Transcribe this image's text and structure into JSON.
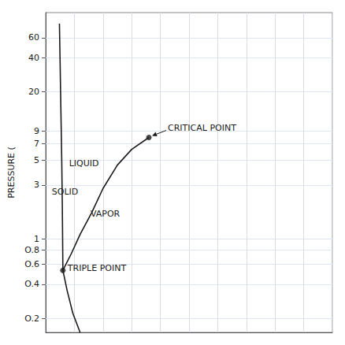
{
  "chart_data": {
    "type": "line",
    "ylabel": "PRESSURE (",
    "color": "#1a1a1a",
    "log": "y",
    "grid": true,
    "tick_labels": "y",
    "xlim": [
      0,
      10
    ],
    "xticks": [
      0,
      1,
      2,
      3,
      4,
      5,
      6,
      7,
      8,
      9,
      10
    ],
    "ylim": [
      0.15,
      100
    ],
    "yticks": [
      {
        "value": 0.2,
        "label": "O.2"
      },
      {
        "value": 0.4,
        "label": "O.4"
      },
      {
        "value": 0.6,
        "label": "O.6"
      },
      {
        "value": 0.8,
        "label": "O.8"
      },
      1,
      3,
      5,
      7,
      9,
      20,
      40,
      60
    ],
    "series": [
      {
        "type": "line",
        "x": [
          0.6,
          0.58,
          0.56,
          0.54,
          0.52,
          0.5,
          0.48
        ],
        "values": [
          0.53,
          2.0,
          5.0,
          10,
          20,
          40,
          80
        ]
      },
      {
        "type": "line",
        "x": [
          0.6,
          0.9,
          1.2,
          1.6,
          2.0,
          2.5,
          3.0,
          3.6
        ],
        "values": [
          0.53,
          0.75,
          1.1,
          1.7,
          2.8,
          4.5,
          6.2,
          7.9
        ]
      },
      {
        "type": "line",
        "x": [
          0.6,
          0.75,
          0.95,
          1.2
        ],
        "values": [
          0.53,
          0.35,
          0.22,
          0.15
        ]
      },
      {
        "type": "scatter",
        "marker": "circle",
        "x": [
          0.6,
          3.6
        ],
        "values": [
          0.53,
          7.9
        ]
      }
    ],
    "annotations": [
      {
        "text": "TRIPLE POINT",
        "x": 0.6,
        "y": 0.53
      },
      {
        "text": "CRITICAL POINT",
        "x": 3.6,
        "y": 7.9,
        "type": "arrow"
      },
      {
        "text": "SOLID",
        "x": 0.05,
        "y": 2.5
      },
      {
        "text": "LIQUID",
        "x": 0.65,
        "y": 4.5
      },
      {
        "text": "VAPOR",
        "x": 1.4,
        "y": 1.6
      }
    ]
  }
}
